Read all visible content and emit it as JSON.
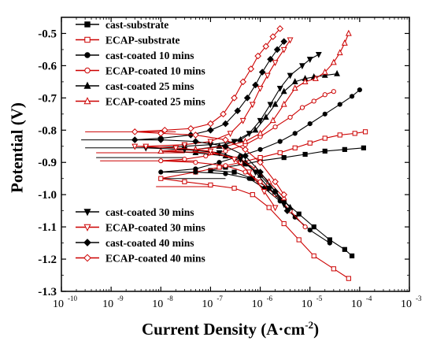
{
  "chart_data": {
    "type": "line",
    "xlabel_main": "Current Density (A·cm",
    "xlabel_sup": "-2",
    "xlabel_tail": ")",
    "ylabel": "Potential (V)",
    "xscale": "log",
    "xlim": [
      1e-10,
      0.001
    ],
    "ylim": [
      -1.3,
      -0.45
    ],
    "xticks": [
      "10",
      "10",
      "10",
      "10",
      "10",
      "10",
      "10",
      "10"
    ],
    "xtick_exps": [
      "-10",
      "-9",
      "-8",
      "-7",
      "-6",
      "-5",
      "-4",
      "-3"
    ],
    "xtick_vals": [
      1e-10,
      1e-09,
      1e-08,
      1e-07,
      1e-06,
      1e-05,
      0.0001,
      0.001
    ],
    "yticks": [
      "-0.5",
      "-0.6",
      "-0.7",
      "-0.8",
      "-0.9",
      "-1.0",
      "-1.1",
      "-1.2",
      "-1.3"
    ],
    "ytick_vals": [
      -0.5,
      -0.6,
      -0.7,
      -0.8,
      -0.9,
      -1.0,
      -1.1,
      -1.2,
      -1.3
    ],
    "legend_top": "top-left",
    "legend_bottom": "bottom-left",
    "series": [
      {
        "name": "cast-substrate",
        "color": "#000000",
        "marker": "square-filled",
        "legend": "top",
        "points": [
          [
            0.00012,
            -0.855
          ],
          [
            5e-05,
            -0.86
          ],
          [
            2e-05,
            -0.865
          ],
          [
            8e-06,
            -0.875
          ],
          [
            3e-06,
            -0.885
          ],
          [
            1e-06,
            -0.895
          ],
          [
            5e-07,
            -0.905
          ],
          [
            2e-07,
            -0.915
          ],
          [
            1e-07,
            -0.925
          ],
          [
            3e-07,
            -0.93
          ],
          [
            7e-07,
            -0.95
          ],
          [
            1.5e-06,
            -0.98
          ],
          [
            3e-06,
            -1.02
          ],
          [
            6e-06,
            -1.06
          ],
          [
            1.2e-05,
            -1.1
          ],
          [
            2.5e-05,
            -1.14
          ],
          [
            5e-05,
            -1.17
          ],
          [
            7e-05,
            -1.19
          ]
        ]
      },
      {
        "name": "ECAP-substrate",
        "color": "#cc0000",
        "marker": "square-open",
        "legend": "top",
        "points": [
          [
            0.00013,
            -0.805
          ],
          [
            8e-05,
            -0.81
          ],
          [
            4e-05,
            -0.815
          ],
          [
            2e-05,
            -0.825
          ],
          [
            1e-05,
            -0.84
          ],
          [
            5e-06,
            -0.855
          ],
          [
            2.5e-06,
            -0.87
          ],
          [
            1e-06,
            -0.885
          ],
          [
            4e-07,
            -0.9
          ],
          [
            1.5e-07,
            -0.915
          ],
          [
            5e-08,
            -0.93
          ],
          [
            1e-08,
            -0.95
          ],
          [
            3e-08,
            -0.96
          ],
          [
            1e-07,
            -0.97
          ],
          [
            3e-07,
            -0.98
          ],
          [
            7e-07,
            -1.0
          ],
          [
            1.5e-06,
            -1.04
          ],
          [
            3e-06,
            -1.09
          ],
          [
            6e-06,
            -1.14
          ],
          [
            1.2e-05,
            -1.19
          ],
          [
            3e-05,
            -1.23
          ],
          [
            6e-05,
            -1.26
          ]
        ]
      },
      {
        "name": "cast-coated 10 mins",
        "color": "#000000",
        "marker": "circle-filled",
        "legend": "top",
        "points": [
          [
            0.0001,
            -0.675
          ],
          [
            7e-05,
            -0.695
          ],
          [
            4e-05,
            -0.72
          ],
          [
            2e-05,
            -0.75
          ],
          [
            1e-05,
            -0.78
          ],
          [
            5e-06,
            -0.81
          ],
          [
            2.5e-06,
            -0.835
          ],
          [
            1e-06,
            -0.86
          ],
          [
            4e-07,
            -0.88
          ],
          [
            1.5e-07,
            -0.9
          ],
          [
            5e-08,
            -0.92
          ],
          [
            1e-08,
            -0.93
          ],
          [
            5e-08,
            -0.93
          ],
          [
            2e-07,
            -0.935
          ],
          [
            6e-07,
            -0.95
          ],
          [
            1.2e-06,
            -0.98
          ],
          [
            2.5e-06,
            -1.02
          ],
          [
            5e-06,
            -1.07
          ],
          [
            1e-05,
            -1.11
          ],
          [
            2.5e-05,
            -1.15
          ]
        ]
      },
      {
        "name": "ECAP-coated 10 mins",
        "color": "#cc0000",
        "marker": "circle-open",
        "legend": "top",
        "points": [
          [
            3e-05,
            -0.68
          ],
          [
            2e-05,
            -0.69
          ],
          [
            1.2e-05,
            -0.71
          ],
          [
            7e-06,
            -0.73
          ],
          [
            4e-06,
            -0.76
          ],
          [
            2e-06,
            -0.79
          ],
          [
            1e-06,
            -0.82
          ],
          [
            5e-07,
            -0.845
          ],
          [
            2e-07,
            -0.865
          ],
          [
            8e-08,
            -0.88
          ],
          [
            3e-08,
            -0.89
          ],
          [
            1e-08,
            -0.895
          ],
          [
            5e-08,
            -0.9
          ],
          [
            2e-07,
            -0.91
          ],
          [
            5e-07,
            -0.93
          ],
          [
            1e-06,
            -0.96
          ],
          [
            2e-06,
            -1.0
          ],
          [
            4e-06,
            -1.05
          ],
          [
            8e-06,
            -1.1
          ]
        ]
      },
      {
        "name": "cast-coated 25 mins",
        "color": "#000000",
        "marker": "triangle-up-filled",
        "legend": "top",
        "points": [
          [
            3.5e-05,
            -0.625
          ],
          [
            2e-05,
            -0.63
          ],
          [
            1.2e-05,
            -0.635
          ],
          [
            8e-06,
            -0.64
          ],
          [
            5e-06,
            -0.65
          ],
          [
            3e-06,
            -0.68
          ],
          [
            2e-06,
            -0.72
          ],
          [
            1.3e-06,
            -0.76
          ],
          [
            8e-07,
            -0.8
          ],
          [
            4e-07,
            -0.83
          ],
          [
            1.5e-07,
            -0.85
          ],
          [
            5e-08,
            -0.86
          ],
          [
            1e-08,
            -0.865
          ],
          [
            5e-08,
            -0.87
          ],
          [
            2e-07,
            -0.88
          ],
          [
            5e-07,
            -0.9
          ],
          [
            1e-06,
            -0.94
          ],
          [
            2e-06,
            -0.99
          ],
          [
            4e-06,
            -1.04
          ]
        ]
      },
      {
        "name": "ECAP-coated 25 mins",
        "color": "#cc0000",
        "marker": "triangle-up-open",
        "legend": "top",
        "points": [
          [
            6e-05,
            -0.5
          ],
          [
            5e-05,
            -0.53
          ],
          [
            4e-05,
            -0.56
          ],
          [
            3e-05,
            -0.59
          ],
          [
            2e-05,
            -0.62
          ],
          [
            1.3e-05,
            -0.64
          ],
          [
            8e-06,
            -0.65
          ],
          [
            5e-06,
            -0.67
          ],
          [
            3e-06,
            -0.72
          ],
          [
            1.8e-06,
            -0.77
          ],
          [
            1e-06,
            -0.81
          ],
          [
            5e-07,
            -0.835
          ],
          [
            2e-07,
            -0.85
          ],
          [
            5e-08,
            -0.86
          ],
          [
            1e-08,
            -0.865
          ],
          [
            1e-07,
            -0.87
          ],
          [
            4e-07,
            -0.89
          ],
          [
            8e-07,
            -0.92
          ],
          [
            1.5e-06,
            -0.96
          ],
          [
            3e-06,
            -1.01
          ]
        ]
      },
      {
        "name": "cast-coated 30 mins",
        "color": "#000000",
        "marker": "triangle-down-filled",
        "legend": "bottom",
        "points": [
          [
            1.5e-05,
            -0.565
          ],
          [
            1e-05,
            -0.58
          ],
          [
            7e-06,
            -0.6
          ],
          [
            4e-06,
            -0.63
          ],
          [
            2.5e-06,
            -0.67
          ],
          [
            1.6e-06,
            -0.72
          ],
          [
            1e-06,
            -0.77
          ],
          [
            6e-07,
            -0.81
          ],
          [
            3e-07,
            -0.835
          ],
          [
            1e-07,
            -0.845
          ],
          [
            3e-08,
            -0.85
          ],
          [
            5e-09,
            -0.855
          ],
          [
            3e-08,
            -0.86
          ],
          [
            1.5e-07,
            -0.87
          ],
          [
            4e-07,
            -0.89
          ],
          [
            8e-07,
            -0.93
          ],
          [
            1.5e-06,
            -0.98
          ],
          [
            3e-06,
            -1.03
          ]
        ]
      },
      {
        "name": "ECAP-coated 30 mins",
        "color": "#cc0000",
        "marker": "triangle-down-open",
        "legend": "bottom",
        "points": [
          [
            4e-06,
            -0.52
          ],
          [
            3e-06,
            -0.55
          ],
          [
            2e-06,
            -0.59
          ],
          [
            1.4e-06,
            -0.63
          ],
          [
            1e-06,
            -0.67
          ],
          [
            7e-07,
            -0.72
          ],
          [
            4.5e-07,
            -0.77
          ],
          [
            2.5e-07,
            -0.81
          ],
          [
            1e-07,
            -0.835
          ],
          [
            3e-08,
            -0.845
          ],
          [
            5e-09,
            -0.85
          ],
          [
            3e-09,
            -0.85
          ],
          [
            2e-08,
            -0.855
          ],
          [
            1e-07,
            -0.865
          ],
          [
            3e-07,
            -0.89
          ],
          [
            6e-07,
            -0.93
          ],
          [
            1.2e-06,
            -0.99
          ],
          [
            2e-06,
            -1.04
          ]
        ]
      },
      {
        "name": "cast-coated 40 mins",
        "color": "#000000",
        "marker": "diamond-filled",
        "legend": "bottom",
        "points": [
          [
            3e-06,
            -0.525
          ],
          [
            2.2e-06,
            -0.55
          ],
          [
            1.6e-06,
            -0.58
          ],
          [
            1.1e-06,
            -0.62
          ],
          [
            8e-07,
            -0.66
          ],
          [
            5.5e-07,
            -0.7
          ],
          [
            3.5e-07,
            -0.74
          ],
          [
            2e-07,
            -0.78
          ],
          [
            1e-07,
            -0.8
          ],
          [
            4e-08,
            -0.815
          ],
          [
            1e-08,
            -0.825
          ],
          [
            3e-09,
            -0.83
          ],
          [
            1e-08,
            -0.83
          ],
          [
            5e-08,
            -0.835
          ],
          [
            2e-07,
            -0.85
          ],
          [
            5e-07,
            -0.88
          ],
          [
            1e-06,
            -0.93
          ],
          [
            2e-06,
            -0.99
          ],
          [
            3.5e-06,
            -1.05
          ]
        ]
      },
      {
        "name": "ECAP-coated 40 mins",
        "color": "#cc0000",
        "marker": "diamond-open",
        "legend": "bottom",
        "points": [
          [
            2.5e-06,
            -0.485
          ],
          [
            1.8e-06,
            -0.51
          ],
          [
            1.3e-06,
            -0.54
          ],
          [
            9e-07,
            -0.57
          ],
          [
            6.5e-07,
            -0.61
          ],
          [
            4.5e-07,
            -0.65
          ],
          [
            3e-07,
            -0.7
          ],
          [
            1.8e-07,
            -0.75
          ],
          [
            1e-07,
            -0.78
          ],
          [
            4e-08,
            -0.795
          ],
          [
            1.2e-08,
            -0.8
          ],
          [
            3e-09,
            -0.805
          ],
          [
            1e-08,
            -0.81
          ],
          [
            5e-08,
            -0.815
          ],
          [
            2e-07,
            -0.83
          ],
          [
            5e-07,
            -0.86
          ],
          [
            1e-06,
            -0.9
          ],
          [
            2e-06,
            -0.96
          ],
          [
            3e-06,
            -1.0
          ]
        ]
      }
    ],
    "tails": [
      {
        "color": "#000000",
        "x0": 2.5e-10,
        "x1": 1e-08,
        "y": -0.83
      },
      {
        "color": "#000000",
        "x0": 3e-10,
        "x1": 5e-09,
        "y": -0.855
      },
      {
        "color": "#cc0000",
        "x0": 3e-10,
        "x1": 2e-08,
        "y": -0.805
      },
      {
        "color": "#cc0000",
        "x0": 6e-10,
        "x1": 5e-08,
        "y": -0.895
      },
      {
        "color": "#cc0000",
        "x0": 5e-10,
        "x1": 3e-08,
        "y": -0.87
      },
      {
        "color": "#000000",
        "x0": 5e-10,
        "x1": 3e-08,
        "y": -0.885
      },
      {
        "color": "#cc0000",
        "x0": 8e-09,
        "x1": 1e-07,
        "y": -0.975
      },
      {
        "color": "#000000",
        "x0": 1e-08,
        "x1": 2e-07,
        "y": -0.95
      }
    ]
  }
}
